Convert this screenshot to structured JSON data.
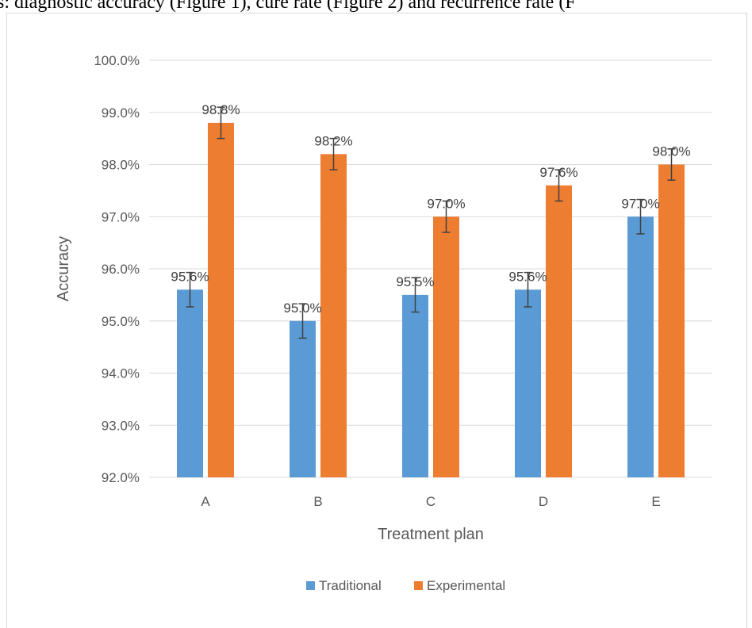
{
  "caption_text": "s: diagnostic accuracy (Figure 1), cure rate (Figure 2) and recurrence rate (F",
  "chart_data": {
    "type": "bar",
    "categories": [
      "A",
      "B",
      "C",
      "D",
      "E"
    ],
    "series": [
      {
        "name": "Traditional",
        "values": [
          95.6,
          95.0,
          95.5,
          95.6,
          97.0
        ],
        "color": "#5b9bd5",
        "labels": [
          "95.6%",
          "95.0%",
          "95.5%",
          "95.6%",
          "97.0%"
        ],
        "error": 0.33
      },
      {
        "name": "Experimental",
        "values": [
          98.8,
          98.2,
          97.0,
          97.6,
          98.0
        ],
        "color": "#ed7d31",
        "labels": [
          "98.8%",
          "98.2%",
          "97.0%",
          "97.6%",
          "98.0%"
        ],
        "error": 0.3
      }
    ],
    "xlabel": "Treatment plan",
    "ylabel": "Accuracy",
    "ylim": [
      92.0,
      100.0
    ],
    "yticks": [
      92.0,
      93.0,
      94.0,
      95.0,
      96.0,
      97.0,
      98.0,
      99.0,
      100.0
    ],
    "ytick_labels": [
      "92.0%",
      "93.0%",
      "94.0%",
      "95.0%",
      "96.0%",
      "97.0%",
      "98.0%",
      "99.0%",
      "100.0%"
    ],
    "grid": true,
    "legend_position": "bottom"
  }
}
